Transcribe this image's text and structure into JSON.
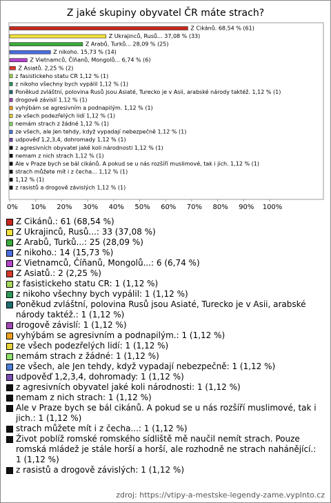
{
  "chart_data": {
    "type": "bar",
    "orientation": "horizontal",
    "title": "Z jaké skupiny obyvatel ČR máte strach?",
    "values": [
      68.54,
      37.08,
      28.09,
      15.73,
      6.74,
      2.25,
      1.12,
      1.12,
      1.12,
      1.12,
      1.12,
      1.12,
      1.12,
      1.12,
      1.12,
      1.12,
      1.12,
      1.12,
      1.12,
      1.12,
      1.12
    ],
    "value_labels": [
      "Z Cikánů. 68,54 % (61)",
      "Z Ukrajinců, Rusů... 37,08 % (33)",
      "Z Arabů, Turků... 28,09 % (25)",
      "Z nikoho. 15,73 % (14)",
      "Z Vietnamců, Číňanů, Mongolů... 6,74 % (6)",
      "Z Asiatů. 2,25 % (2)",
      "z fasistickeho statu CR 1,12 % (1)",
      "z nikoho všechny bych vypálil 1,12 % (1)",
      "Poněkud zvláštní, polovina Rusů jsou Asiaté, Turecko je v Asii, arabské národy taktéž. 1,12 % (1)",
      "drogově závislí 1,12 % (1)",
      "vyhýbám se agresivním a podnapilým. 1,12 % (1)",
      "ze všech podezřelých lidí 1,12 % (1)",
      "nemám strach z žádné 1,12 % (1)",
      "ze všech, ale Jen tehdy, když vypadají nebezpečně 1,12 % (1)",
      "udpověď 1,2,3,4, dohromady 1,12 % (1)",
      "z agresivních obyvatel jaké koli národnosti 1,12 % (1)",
      "nemam z nich strach 1,12 % (1)",
      "Ale v Praze bych se bál cikánů. A pokud se u nás rozšíří muslimové, tak i jich. 1,12 % (1)",
      "strach můžete mít i z čecha... 1,12 % (1)",
      "1,12 % (1)",
      "z rasistů a drogově závislých 1,12 % (1)"
    ],
    "legend_labels": [
      "Z Cikánů.: 61 (68,54 %)",
      "Z Ukrajinců, Rusů...: 33 (37,08 %)",
      "Z Arabů, Turků...: 25 (28,09 %)",
      "Z nikoho.: 14 (15,73 %)",
      "Z Vietnamců, Číňanů, Mongolů...: 6 (6,74 %)",
      "Z Asiatů.: 2 (2,25 %)",
      "z fasistickeho statu CR: 1 (1,12 %)",
      "z nikoho všechny bych vypálil: 1 (1,12 %)",
      "Poněkud zvláštní, polovina Rusů jsou Asiaté, Turecko je v Asii, arabské národy taktéž.: 1 (1,12 %)",
      "drogově závislí: 1 (1,12 %)",
      "vyhýbám se agresivním a podnapilým.: 1 (1,12 %)",
      "ze všech podezřelých lidí: 1 (1,12 %)",
      "nemám strach z žádné: 1 (1,12 %)",
      "ze všech, ale Jen tehdy, když vypadají nebezpečně: 1 (1,12 %)",
      "udpověď 1,2,3,4, dohromady: 1 (1,12 %)",
      "z agresivních obyvatel jaké koli národnosti: 1 (1,12 %)",
      "nemam z nich strach: 1 (1,12 %)",
      "Ale v Praze bych se bál cikánů. A pokud se u nás rozšíří muslimové, tak i jich.: 1 (1,12 %)",
      "strach můžete mít i z čecha...: 1 (1,12 %)",
      "Život poblíž romské romského sídliště mě naučil nemít strach. Pouze romská mládež je stále horší a horší, ale rozhodně ne strach nahánějící.: 1 (1,12 %)",
      "z rasistů a drogově závislých: 1 (1,12 %)"
    ],
    "colors": [
      "#c8281e",
      "#f2e23c",
      "#3cac3c",
      "#4a6ee0",
      "#b244c8",
      "#d83a2a",
      "#a6d85a",
      "#2e9a5a",
      "#1e6e72",
      "#a048b4",
      "#f0a01e",
      "#e8d23a",
      "#8ee06a",
      "#4c7ed8",
      "#7a4cb0",
      "#111111",
      "#111111",
      "#111111",
      "#111111",
      "#111111",
      "#111111"
    ],
    "xlim": [
      0,
      121
    ],
    "xticks": [
      {
        "value": 0,
        "label": "0%"
      },
      {
        "value": 10,
        "label": "10%"
      },
      {
        "value": 20,
        "label": "20%"
      },
      {
        "value": 30,
        "label": "30%"
      },
      {
        "value": 40,
        "label": "40%"
      },
      {
        "value": 50,
        "label": "50%"
      },
      {
        "value": 60,
        "label": "60%"
      },
      {
        "value": 70,
        "label": "70%"
      },
      {
        "value": 80,
        "label": "80%"
      },
      {
        "value": 90,
        "label": "90%"
      },
      {
        "value": 100,
        "label": "100%"
      }
    ],
    "source": "zdroj: https://vtipy-a-mestske-legendy-zame.vyplnto.cz"
  }
}
